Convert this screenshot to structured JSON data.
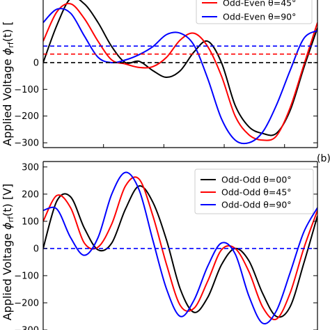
{
  "chart_data": [
    {
      "type": "line",
      "panel_label": "",
      "ylabel_main": "Applied Voltage ",
      "ylabel_symbol": "ϕ",
      "ylabel_sub": "rf",
      "ylabel_arg": "(t)",
      "ylabel_unit": " [",
      "yticks": [
        "0",
        "−100",
        "−200",
        "−300"
      ],
      "ytick_values": [
        0,
        -100,
        -200,
        -300
      ],
      "ylim": [
        -318,
        250
      ],
      "xlim": [
        0,
        1
      ],
      "grid": false,
      "legend_position": "top-right",
      "series": [
        {
          "name": "Odd-Even θ=00°",
          "legend_visible": false,
          "color": "#000000",
          "style": "solid",
          "x": [
            0.0,
            0.05,
            0.1,
            0.15,
            0.2,
            0.25,
            0.3,
            0.35,
            0.4,
            0.45,
            0.5,
            0.55,
            0.6,
            0.65,
            0.7,
            0.75,
            0.8,
            0.85,
            0.9,
            0.95,
            1.0
          ],
          "y": [
            0,
            140,
            240,
            220,
            150,
            60,
            0,
            5,
            -30,
            -55,
            -30,
            40,
            80,
            0,
            -160,
            -240,
            -265,
            -265,
            -180,
            -20,
            130
          ]
        },
        {
          "name": "Odd-Even θ=45°",
          "color": "#ff0000",
          "style": "solid",
          "x": [
            0.0,
            0.05,
            0.1,
            0.15,
            0.2,
            0.25,
            0.3,
            0.35,
            0.4,
            0.45,
            0.5,
            0.55,
            0.6,
            0.65,
            0.7,
            0.75,
            0.8,
            0.85,
            0.9,
            0.95,
            1.0
          ],
          "y": [
            80,
            190,
            220,
            165,
            80,
            10,
            -5,
            -18,
            -15,
            20,
            85,
            110,
            60,
            -50,
            -200,
            -270,
            -290,
            -275,
            -170,
            -10,
            150
          ]
        },
        {
          "name": "Odd-Even θ=90°",
          "color": "#0000ff",
          "style": "solid",
          "x": [
            0.0,
            0.05,
            0.1,
            0.15,
            0.2,
            0.25,
            0.3,
            0.35,
            0.4,
            0.45,
            0.5,
            0.55,
            0.6,
            0.65,
            0.7,
            0.75,
            0.8,
            0.85,
            0.9,
            0.95,
            1.0
          ],
          "y": [
            150,
            200,
            185,
            100,
            20,
            0,
            10,
            30,
            60,
            105,
            110,
            65,
            -60,
            -210,
            -290,
            -300,
            -260,
            -160,
            -30,
            90,
            120
          ]
        },
        {
          "name": "Odd-Even θ=00° offset",
          "legend_visible": false,
          "color": "#000000",
          "style": "dashed",
          "x": [
            0,
            1
          ],
          "y": [
            0,
            0
          ]
        },
        {
          "name": "Odd-Even θ=45° offset",
          "legend_visible": false,
          "color": "#ff0000",
          "style": "dashed",
          "x": [
            0,
            1
          ],
          "y": [
            32,
            32
          ]
        },
        {
          "name": "Odd-Even θ=90° offset",
          "legend_visible": false,
          "color": "#0000ff",
          "style": "dashed",
          "x": [
            0,
            1
          ],
          "y": [
            62,
            62
          ]
        }
      ]
    },
    {
      "type": "line",
      "panel_label": "(b)",
      "ylabel_main": "Applied Voltage ",
      "ylabel_symbol": "ϕ",
      "ylabel_sub": "rf",
      "ylabel_arg": "(t)",
      "ylabel_unit": " [V]",
      "yticks": [
        "300",
        "200",
        "100",
        "0",
        "−100",
        "−200",
        "−300"
      ],
      "ytick_values": [
        300,
        200,
        100,
        0,
        -100,
        -200,
        -300
      ],
      "ylim": [
        -300,
        320
      ],
      "xlim": [
        0,
        1
      ],
      "grid": false,
      "legend_position": "top-right",
      "series": [
        {
          "name": "Odd-Odd θ=00°",
          "color": "#000000",
          "style": "solid",
          "x": [
            0.0,
            0.05,
            0.1,
            0.15,
            0.2,
            0.25,
            0.3,
            0.35,
            0.4,
            0.45,
            0.5,
            0.55,
            0.6,
            0.65,
            0.7,
            0.75,
            0.8,
            0.85,
            0.9,
            0.95,
            1.0
          ],
          "y": [
            0,
            175,
            190,
            75,
            -5,
            20,
            145,
            230,
            170,
            30,
            -150,
            -235,
            -180,
            -60,
            0,
            -45,
            -165,
            -250,
            -215,
            -55,
            120
          ]
        },
        {
          "name": "Odd-Odd θ=45°",
          "color": "#ff0000",
          "style": "solid",
          "x": [
            0.0,
            0.05,
            0.1,
            0.15,
            0.2,
            0.25,
            0.3,
            0.35,
            0.4,
            0.45,
            0.5,
            0.55,
            0.6,
            0.65,
            0.7,
            0.75,
            0.8,
            0.85,
            0.9,
            0.95,
            1.0
          ],
          "y": [
            100,
            195,
            150,
            20,
            5,
            90,
            230,
            255,
            120,
            -60,
            -210,
            -220,
            -120,
            -5,
            0,
            -85,
            -215,
            -260,
            -165,
            0,
            140
          ]
        },
        {
          "name": "Odd-Odd θ=90°",
          "color": "#0000ff",
          "style": "solid",
          "x": [
            0.0,
            0.05,
            0.1,
            0.15,
            0.2,
            0.25,
            0.3,
            0.35,
            0.4,
            0.45,
            0.5,
            0.55,
            0.6,
            0.65,
            0.7,
            0.75,
            0.8,
            0.85,
            0.9,
            0.95,
            1.0
          ],
          "y": [
            140,
            145,
            40,
            -25,
            40,
            200,
            280,
            215,
            30,
            -150,
            -250,
            -190,
            -65,
            20,
            -20,
            -175,
            -275,
            -230,
            -90,
            60,
            150
          ]
        },
        {
          "name": "Odd-Odd offset",
          "legend_visible": false,
          "color": "#0000ff",
          "style": "dashed",
          "x": [
            0,
            1
          ],
          "y": [
            0,
            0
          ]
        }
      ]
    }
  ]
}
